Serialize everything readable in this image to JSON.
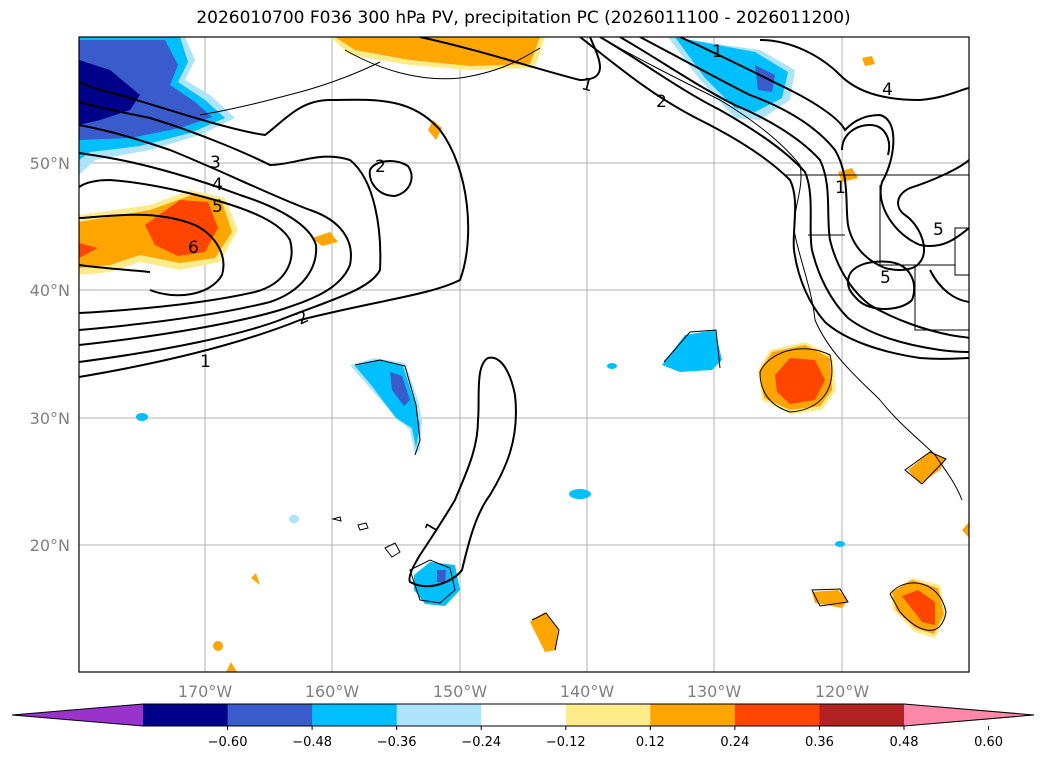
{
  "title": "2026010700 F036 300 hPa PV, precipitation PC (2026011100 - 2026011200)",
  "lat_ticks": [
    "50°N",
    "40°N",
    "30°N",
    "20°N"
  ],
  "lon_ticks": [
    "170°W",
    "160°W",
    "150°W",
    "140°W",
    "130°W",
    "120°W"
  ],
  "colorbar": {
    "ticks": [
      "−0.60",
      "−0.48",
      "−0.36",
      "−0.24",
      "−0.12",
      "0.12",
      "0.24",
      "0.36",
      "0.48",
      "0.60"
    ],
    "colors": [
      "#9933cc",
      "#00008b",
      "#3a5bcc",
      "#00bfff",
      "#ade3fb",
      "#ffffff",
      "#ffeb8a",
      "#ffa500",
      "#ff4500",
      "#b22222",
      "#ff88aa"
    ]
  },
  "contour_labels": [
    "1",
    "2",
    "3",
    "4",
    "5",
    "6",
    "2",
    "1",
    "1",
    "2",
    "1",
    "5",
    "5",
    "4",
    "1"
  ]
}
